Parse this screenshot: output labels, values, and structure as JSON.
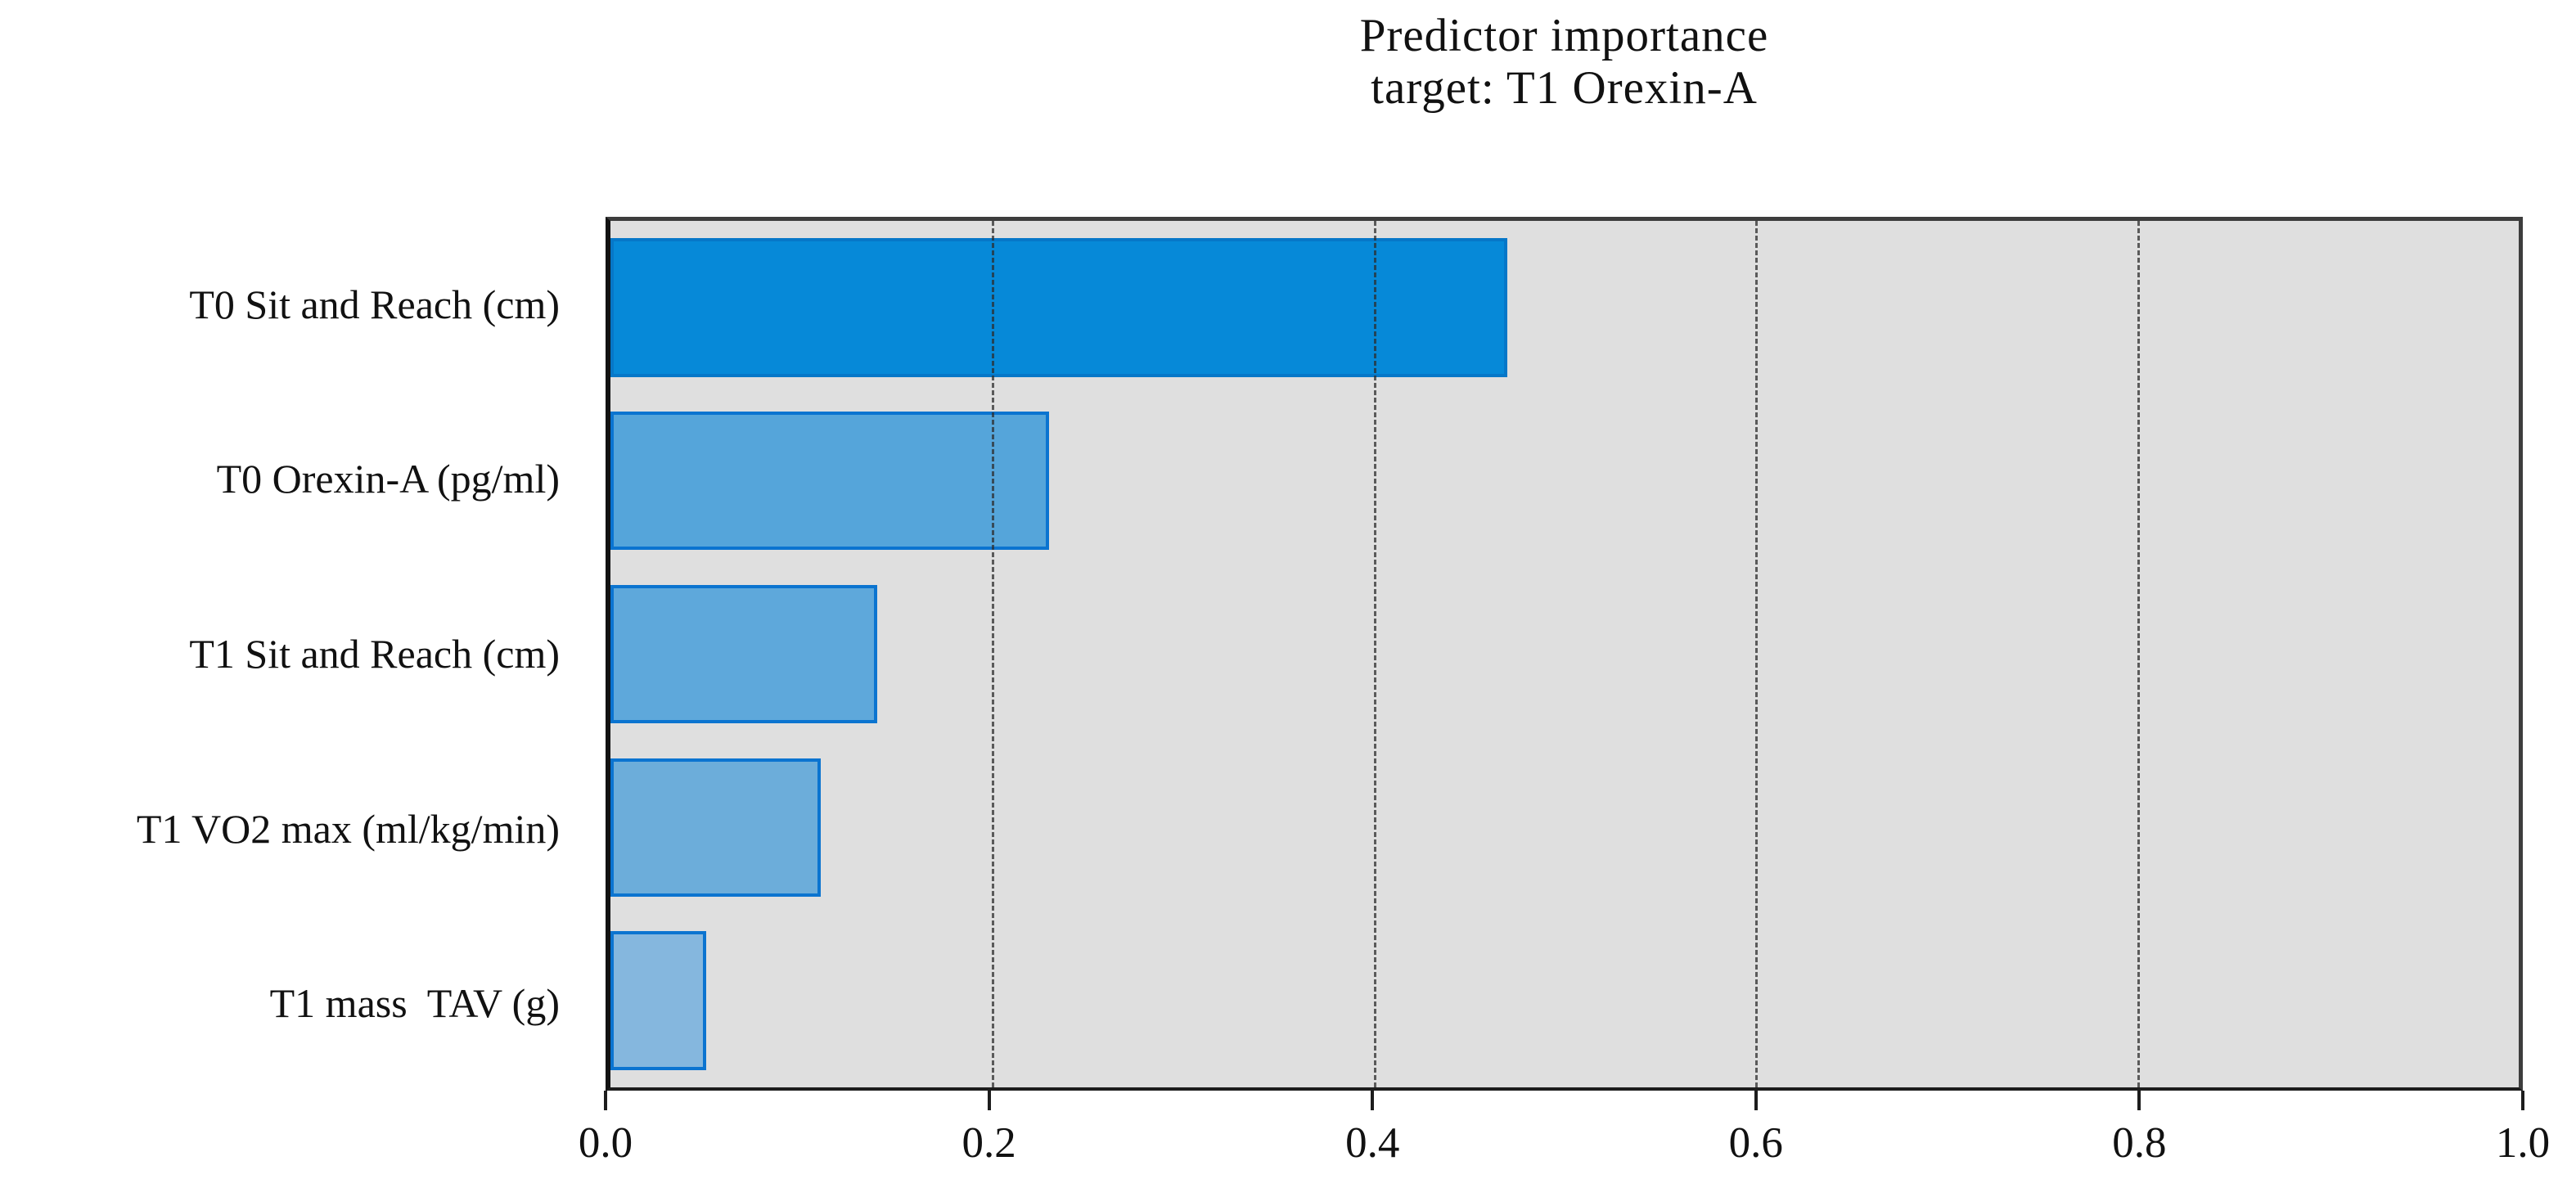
{
  "header": {
    "title_line1": "Predictor importance",
    "title_line2": "target: T1 Orexin-A"
  },
  "chart_data": {
    "type": "bar",
    "orientation": "horizontal",
    "title": "Predictor importance",
    "subtitle": "target: T1 Orexin-A",
    "categories": [
      "T0 Sit and Reach (cm)",
      "T0 Orexin-A (pg/ml)",
      "T1 Sit and Reach (cm)",
      "T1 VO2 max (ml/kg/min)",
      "T1 mass  TAV (g)"
    ],
    "values": [
      0.47,
      0.23,
      0.14,
      0.11,
      0.05
    ],
    "xlabel": "",
    "ylabel": "",
    "xlim": [
      0.0,
      1.0
    ],
    "xtick_labels": [
      "0.0",
      "0.2",
      "0.4",
      "0.6",
      "0.8",
      "1.0"
    ],
    "gridlines_at": [
      0.2,
      0.4,
      0.6,
      0.8
    ],
    "grid_style": "vertical-dashed",
    "legend": "none",
    "styles": {
      "bar_fills": [
        "#0689d8",
        "#55a5da",
        "#5ea8db",
        "#6cadda",
        "#85b7de"
      ],
      "bar_edges": [
        "#0677c8",
        "#0b74d0",
        "#0b74d0",
        "#0b74d0",
        "#0b74d0"
      ],
      "plot_bg": "#dfdfdf",
      "plot_border": "#3d3d3d",
      "axis_spine": "#121212",
      "grid_color": "#2d2d2d",
      "text_color": "#111111",
      "page_bg": "#ffffff"
    }
  }
}
